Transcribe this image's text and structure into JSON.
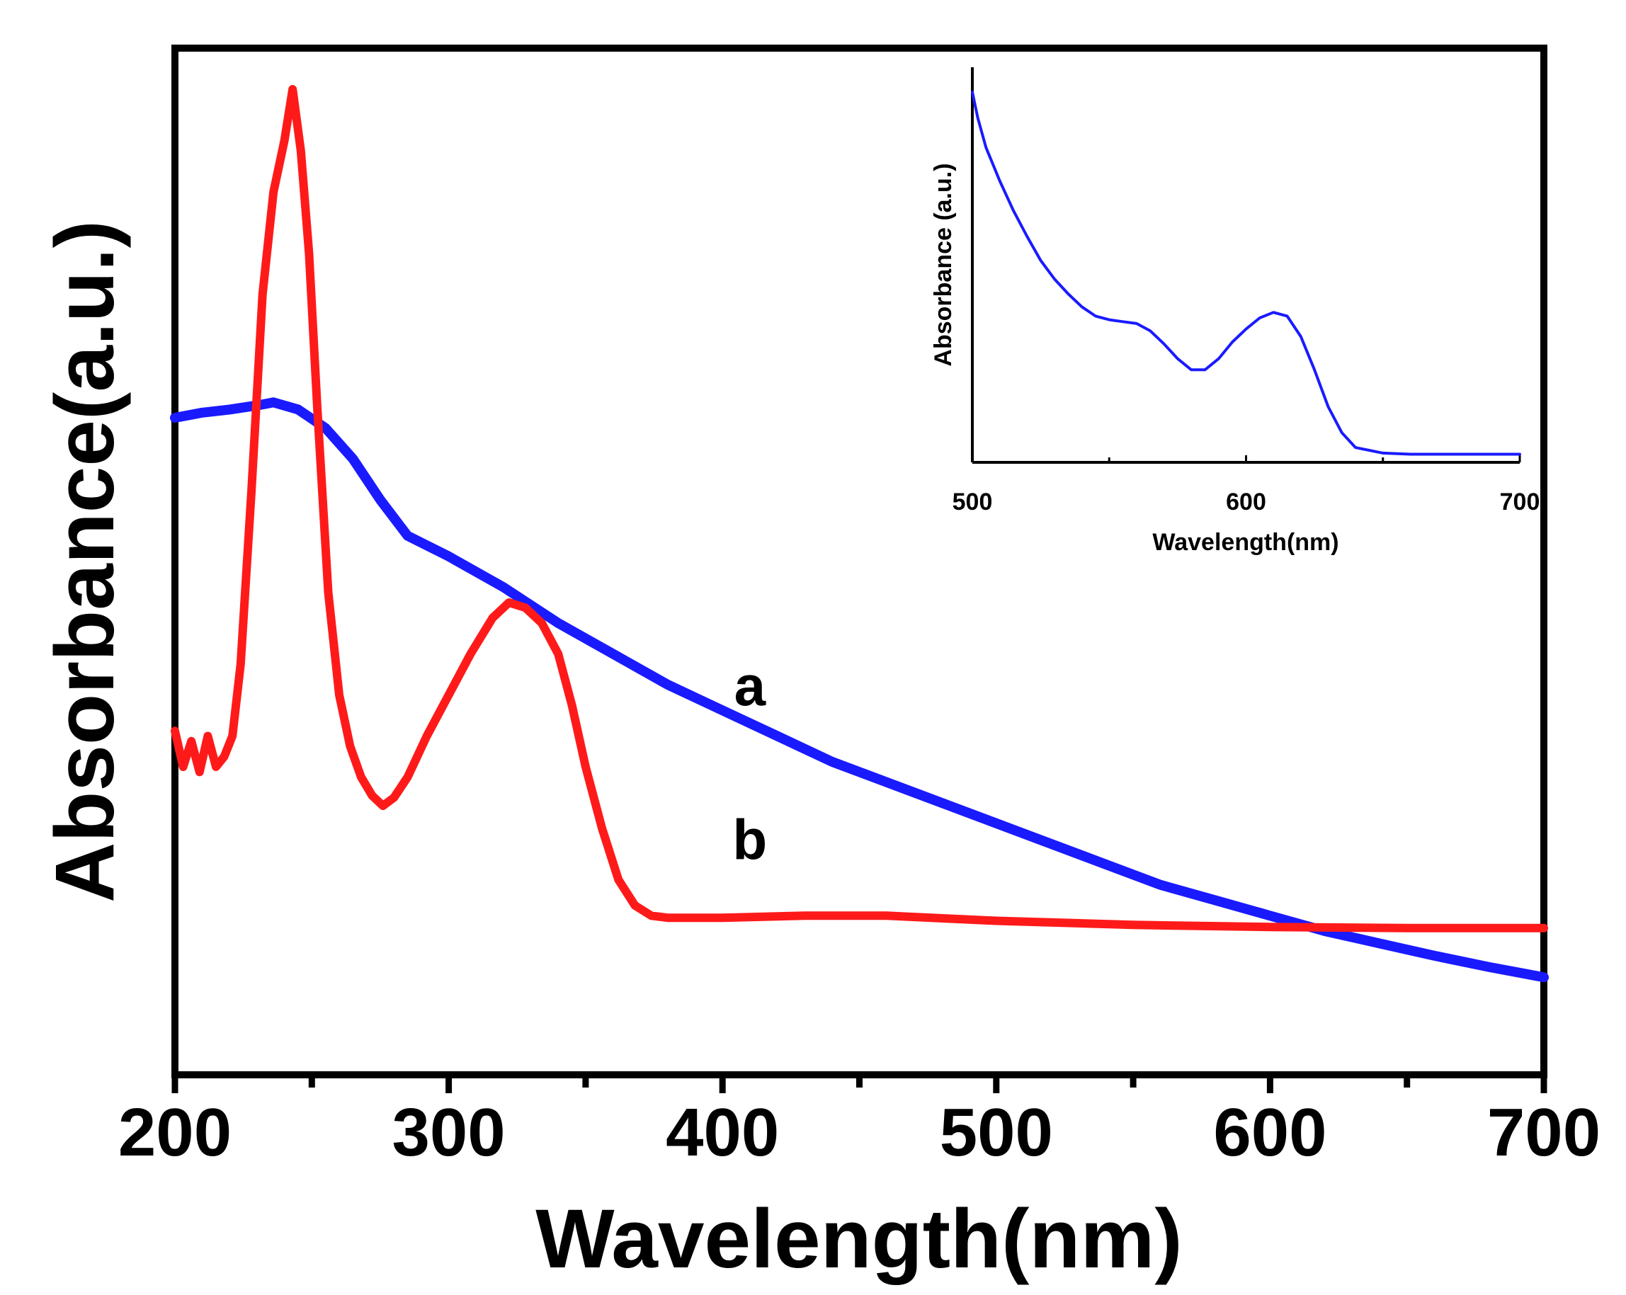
{
  "chart_data": [
    {
      "type": "line",
      "role": "main",
      "title": "",
      "xlabel": "Wavelength(nm)",
      "ylabel": "Absorbance(a.u.)",
      "xlim": [
        200,
        700
      ],
      "ylim": [
        0,
        1.0
      ],
      "xticks": [
        "200",
        "300",
        "400",
        "500",
        "600",
        "700"
      ],
      "yticks": [],
      "series": [
        {
          "name": "a",
          "color": "#1a1aff",
          "points": [
            [
              200,
              0.64
            ],
            [
              210,
              0.645
            ],
            [
              220,
              0.648
            ],
            [
              230,
              0.652
            ],
            [
              236,
              0.655
            ],
            [
              245,
              0.648
            ],
            [
              255,
              0.63
            ],
            [
              265,
              0.6
            ],
            [
              275,
              0.56
            ],
            [
              285,
              0.525
            ],
            [
              300,
              0.505
            ],
            [
              320,
              0.475
            ],
            [
              340,
              0.44
            ],
            [
              360,
              0.41
            ],
            [
              380,
              0.38
            ],
            [
              400,
              0.355
            ],
            [
              420,
              0.33
            ],
            [
              440,
              0.305
            ],
            [
              460,
              0.285
            ],
            [
              480,
              0.265
            ],
            [
              500,
              0.245
            ],
            [
              520,
              0.225
            ],
            [
              540,
              0.205
            ],
            [
              560,
              0.185
            ],
            [
              580,
              0.17
            ],
            [
              600,
              0.155
            ],
            [
              620,
              0.14
            ],
            [
              640,
              0.128
            ],
            [
              660,
              0.116
            ],
            [
              680,
              0.105
            ],
            [
              700,
              0.095
            ]
          ]
        },
        {
          "name": "b",
          "color": "#ff1a1a",
          "points": [
            [
              200,
              0.335
            ],
            [
              203,
              0.3
            ],
            [
              206,
              0.325
            ],
            [
              209,
              0.295
            ],
            [
              212,
              0.33
            ],
            [
              215,
              0.3
            ],
            [
              218,
              0.31
            ],
            [
              221,
              0.33
            ],
            [
              224,
              0.4
            ],
            [
              228,
              0.57
            ],
            [
              232,
              0.76
            ],
            [
              236,
              0.86
            ],
            [
              240,
              0.91
            ],
            [
              243,
              0.96
            ],
            [
              246,
              0.9
            ],
            [
              249,
              0.8
            ],
            [
              252,
              0.65
            ],
            [
              256,
              0.47
            ],
            [
              260,
              0.37
            ],
            [
              264,
              0.32
            ],
            [
              268,
              0.29
            ],
            [
              272,
              0.272
            ],
            [
              276,
              0.262
            ],
            [
              280,
              0.27
            ],
            [
              285,
              0.29
            ],
            [
              292,
              0.33
            ],
            [
              300,
              0.37
            ],
            [
              308,
              0.41
            ],
            [
              316,
              0.445
            ],
            [
              322,
              0.46
            ],
            [
              328,
              0.455
            ],
            [
              334,
              0.44
            ],
            [
              340,
              0.41
            ],
            [
              345,
              0.36
            ],
            [
              350,
              0.3
            ],
            [
              356,
              0.24
            ],
            [
              362,
              0.19
            ],
            [
              368,
              0.165
            ],
            [
              374,
              0.155
            ],
            [
              380,
              0.153
            ],
            [
              400,
              0.153
            ],
            [
              430,
              0.155
            ],
            [
              460,
              0.155
            ],
            [
              500,
              0.15
            ],
            [
              550,
              0.146
            ],
            [
              600,
              0.144
            ],
            [
              650,
              0.143
            ],
            [
              700,
              0.143
            ]
          ]
        }
      ],
      "annotations": [
        {
          "text": "a",
          "x": 410,
          "y": 0.36
        },
        {
          "text": "b",
          "x": 410,
          "y": 0.21
        }
      ]
    },
    {
      "type": "line",
      "role": "inset",
      "title": "",
      "xlabel": "Wavelength(nm)",
      "ylabel": "Absorbance (a.u.)",
      "xlim": [
        500,
        700
      ],
      "ylim": [
        0,
        1.0
      ],
      "xticks": [
        "500",
        "600",
        "700"
      ],
      "yticks": [],
      "series": [
        {
          "name": "inset",
          "color": "#1a1aff",
          "points": [
            [
              500,
              1.0
            ],
            [
              502,
              0.93
            ],
            [
              505,
              0.85
            ],
            [
              510,
              0.76
            ],
            [
              515,
              0.68
            ],
            [
              520,
              0.61
            ],
            [
              525,
              0.545
            ],
            [
              530,
              0.495
            ],
            [
              535,
              0.455
            ],
            [
              540,
              0.42
            ],
            [
              545,
              0.395
            ],
            [
              550,
              0.385
            ],
            [
              555,
              0.38
            ],
            [
              560,
              0.375
            ],
            [
              565,
              0.355
            ],
            [
              570,
              0.32
            ],
            [
              575,
              0.28
            ],
            [
              580,
              0.25
            ],
            [
              585,
              0.25
            ],
            [
              590,
              0.28
            ],
            [
              595,
              0.325
            ],
            [
              600,
              0.36
            ],
            [
              605,
              0.39
            ],
            [
              610,
              0.405
            ],
            [
              615,
              0.395
            ],
            [
              620,
              0.34
            ],
            [
              625,
              0.25
            ],
            [
              630,
              0.15
            ],
            [
              635,
              0.08
            ],
            [
              640,
              0.04
            ],
            [
              650,
              0.025
            ],
            [
              660,
              0.022
            ],
            [
              680,
              0.022
            ],
            [
              700,
              0.022
            ]
          ]
        }
      ]
    }
  ]
}
